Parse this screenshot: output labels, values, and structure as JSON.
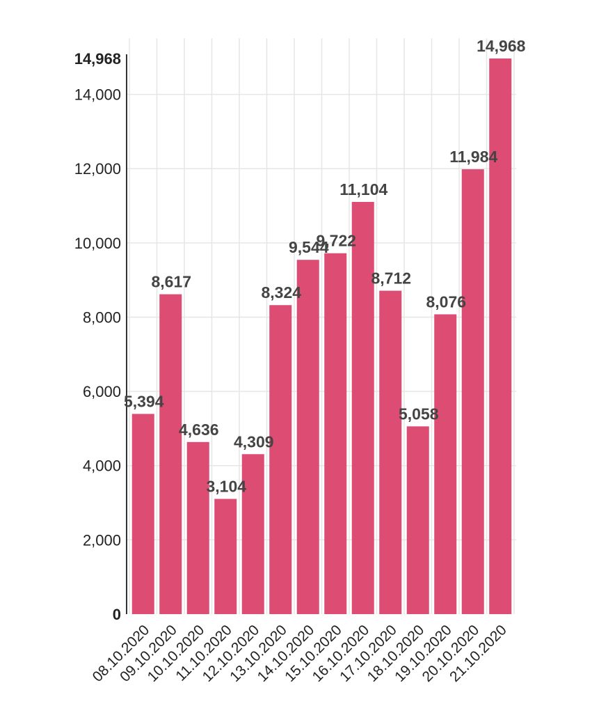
{
  "chart_data": {
    "type": "bar",
    "categories": [
      "08.10.2020",
      "09.10.2020",
      "10.10.2020",
      "11.10.2020",
      "12.10.2020",
      "13.10.2020",
      "14.10.2020",
      "15.10.2020",
      "16.10.2020",
      "17.10.2020",
      "18.10.2020",
      "19.10.2020",
      "20.10.2020",
      "21.10.2020"
    ],
    "values": [
      5394,
      8617,
      4636,
      3104,
      4309,
      8324,
      9544,
      9722,
      11104,
      8712,
      5058,
      8076,
      11984,
      14968
    ],
    "value_labels": [
      "5,394",
      "8,617",
      "4,636",
      "3,104",
      "4,309",
      "8,324",
      "9,544",
      "9,722",
      "11,104",
      "8,712",
      "5,058",
      "8,076",
      "11,984",
      "14,968"
    ],
    "y_ticks": [
      {
        "value": 0,
        "label": "0",
        "bold": true
      },
      {
        "value": 2000,
        "label": "2,000",
        "bold": false
      },
      {
        "value": 4000,
        "label": "4,000",
        "bold": false
      },
      {
        "value": 6000,
        "label": "6,000",
        "bold": false
      },
      {
        "value": 8000,
        "label": "8,000",
        "bold": false
      },
      {
        "value": 10000,
        "label": "10,000",
        "bold": false
      },
      {
        "value": 12000,
        "label": "12,000",
        "bold": false
      },
      {
        "value": 14000,
        "label": "14,000",
        "bold": false
      },
      {
        "value": 14968,
        "label": "14,968",
        "bold": true
      }
    ],
    "ylim": [
      0,
      14968
    ],
    "title": "",
    "xlabel": "",
    "ylabel": "",
    "grid": true,
    "bar_color": "#dc4c73",
    "grid_color": "#e6e6e6",
    "axis_color": "#333333"
  }
}
